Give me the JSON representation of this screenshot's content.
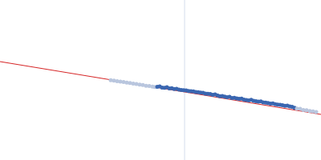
{
  "chart_data": {
    "type": "scatter",
    "tick_labels": false,
    "grid": false,
    "xlim": [
      0,
      400
    ],
    "ylim": [
      0,
      200
    ],
    "vline": 230,
    "vline_color": "#d4dcec",
    "series": [
      {
        "type": "line",
        "color": "#d62728",
        "line_style": "solid",
        "x": [
          0,
          400
        ],
        "values": [
          123,
          57
        ]
      },
      {
        "type": "scatter",
        "marker": "circle",
        "color": "#b9c6de",
        "x": [
          138,
          142,
          146,
          150,
          154,
          158,
          162,
          166,
          170,
          174,
          178,
          182,
          186,
          190,
          193
        ],
        "values": [
          99.8,
          99.3,
          98.4,
          97.9,
          97.6,
          96.8,
          96.2,
          95.6,
          95.1,
          94.2,
          93.8,
          92.7,
          92.6,
          91.7,
          91.2
        ]
      },
      {
        "type": "scatter",
        "marker": "circle",
        "color": "#3a66b0",
        "x": [
          196,
          199,
          202,
          205,
          208,
          211,
          214,
          217,
          220,
          223,
          226,
          229,
          232,
          235,
          238,
          241,
          244,
          247,
          250,
          253,
          256,
          259,
          262,
          265,
          268,
          271,
          274,
          277,
          280,
          283,
          286,
          289,
          292,
          295,
          298,
          301,
          304,
          307,
          310,
          313,
          316,
          319,
          322,
          325,
          328,
          331,
          334,
          337,
          340,
          343,
          346,
          349,
          352,
          355,
          358,
          361,
          364,
          367
        ],
        "values": [
          91.5,
          91.9,
          90.6,
          90.2,
          90.9,
          89.4,
          89.8,
          88.7,
          88.9,
          87.9,
          87.6,
          87.3,
          86.9,
          86.3,
          85.9,
          85.8,
          84.9,
          84.8,
          84.2,
          83.9,
          83.1,
          82.8,
          82.5,
          81.6,
          81.9,
          80.7,
          79.8,
          79.9,
          79.2,
          78.4,
          79.1,
          77.6,
          77.8,
          76.9,
          76.4,
          76.7,
          75.6,
          75.1,
          74.6,
          75.3,
          73.9,
          73.5,
          72.9,
          73.2,
          71.9,
          71.7,
          71.3,
          70.4,
          70.8,
          69.8,
          69.3,
          69.1,
          68.6,
          67.7,
          67.9,
          66.9,
          66.6,
          65.3
        ]
      },
      {
        "type": "scatter",
        "marker": "circle",
        "color": "#b9c6de",
        "x": [
          370,
          374,
          378,
          382,
          386,
          390,
          394
        ],
        "values": [
          64.3,
          63.9,
          62.6,
          62.2,
          61.3,
          60.8,
          59.9
        ]
      }
    ]
  }
}
